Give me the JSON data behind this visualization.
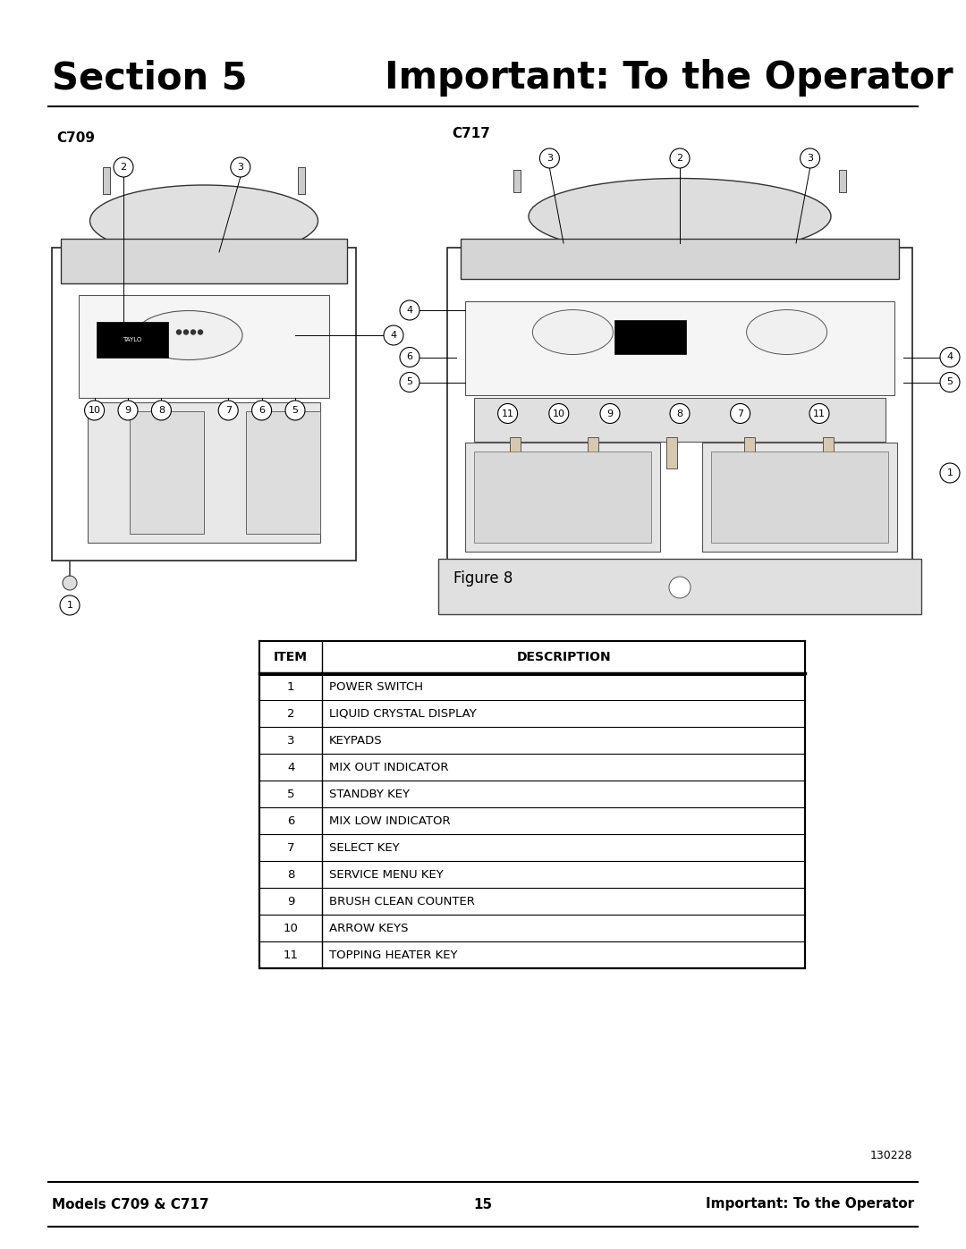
{
  "title_left": "Section 5",
  "title_right": "Important: To the Operator",
  "figure_caption": "Figure 8",
  "doc_number": "130228",
  "footer_left": "Models C709 & C717",
  "footer_center": "15",
  "footer_right": "Important: To the Operator",
  "table_headers": [
    "ITEM",
    "DESCRIPTION"
  ],
  "table_rows": [
    [
      "1",
      "POWER SWITCH"
    ],
    [
      "2",
      "LIQUID CRYSTAL DISPLAY"
    ],
    [
      "3",
      "KEYPADS"
    ],
    [
      "4",
      "MIX OUT INDICATOR"
    ],
    [
      "5",
      "STANDBY KEY"
    ],
    [
      "6",
      "MIX LOW INDICATOR"
    ],
    [
      "7",
      "SELECT KEY"
    ],
    [
      "8",
      "SERVICE MENU KEY"
    ],
    [
      "9",
      "BRUSH CLEAN COUNTER"
    ],
    [
      "10",
      "ARROW KEYS"
    ],
    [
      "11",
      "TOPPING HEATER KEY"
    ]
  ],
  "bg_color": "#ffffff",
  "text_color": "#000000",
  "line_color": "#000000"
}
